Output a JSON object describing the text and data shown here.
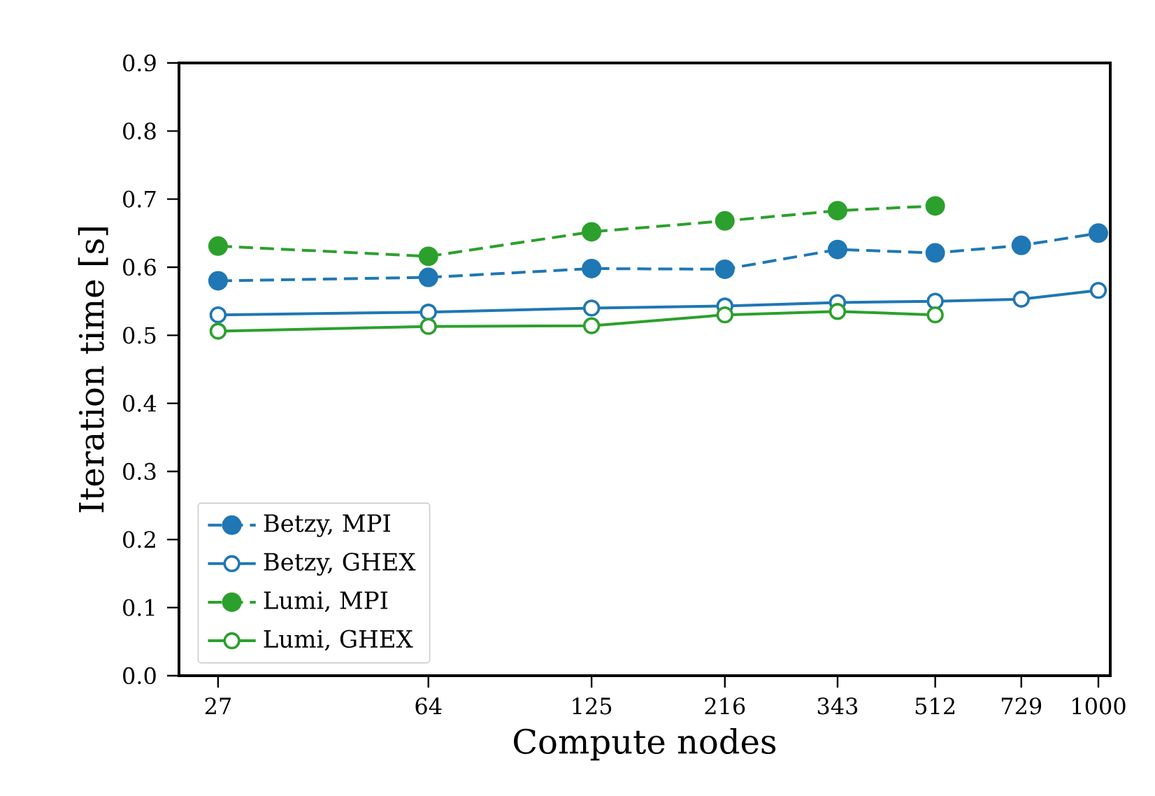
{
  "chart_data": {
    "type": "line",
    "xlabel": "Compute nodes",
    "ylabel": "Iteration time [s]",
    "x": [
      27,
      64,
      125,
      216,
      343,
      512,
      729,
      1000
    ],
    "log": "x",
    "xlim": [
      23,
      1050
    ],
    "ylim": [
      0,
      0.9
    ],
    "xticks": [
      27,
      64,
      125,
      216,
      343,
      512,
      729,
      1000
    ],
    "yticks": [
      {
        "value": 0,
        "label": "0.0"
      },
      0.1,
      0.2,
      0.3,
      0.4,
      0.5,
      0.6,
      0.7,
      0.8,
      0.9
    ],
    "grid": false,
    "legend": "bottom left",
    "marker": "circle",
    "series": [
      {
        "name": "Betzy, MPI",
        "color": "#1f77b4",
        "line_style": "dashed",
        "values": [
          0.58,
          0.585,
          0.598,
          0.597,
          0.626,
          0.621,
          0.632,
          0.65
        ]
      },
      {
        "name": "Betzy, GHEX",
        "color": "#1f77b4",
        "line_style": "solid",
        "values": [
          0.53,
          0.534,
          0.54,
          0.543,
          0.548,
          0.55,
          0.553,
          0.566
        ]
      },
      {
        "name": "Lumi, MPI",
        "color": "#2ca02c",
        "line_style": "dashed",
        "values": [
          0.631,
          0.616,
          0.652,
          0.668,
          0.683,
          0.69,
          null,
          null
        ]
      },
      {
        "name": "Lumi, GHEX",
        "color": "#2ca02c",
        "line_style": "solid",
        "values": [
          0.506,
          0.513,
          0.514,
          0.53,
          0.535,
          0.53,
          null,
          null
        ]
      }
    ]
  }
}
